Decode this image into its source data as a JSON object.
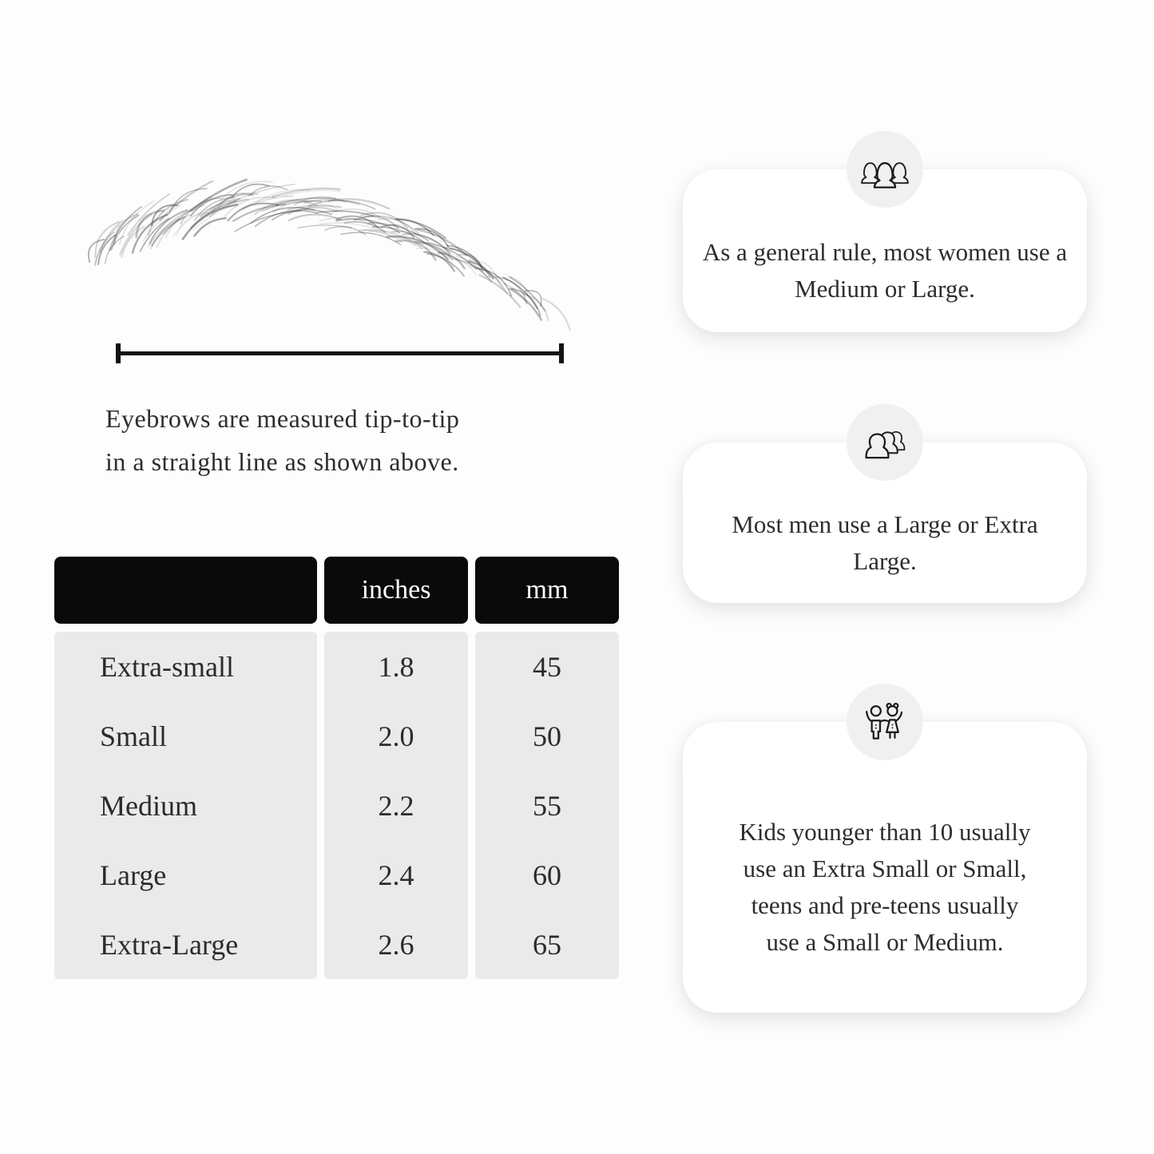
{
  "figure": {
    "illustration": "hand-drawn eyebrow sketch",
    "measurement_line": "tip-to-tip ruler line with end ticks",
    "caption_line1": "Eyebrows are measured tip-to-tip",
    "caption_line2": "in a straight line as shown above."
  },
  "size_table": {
    "headers": [
      "",
      "inches",
      "mm"
    ],
    "rows": [
      {
        "label": "Extra-small",
        "inches": "1.8",
        "mm": "45"
      },
      {
        "label": "Small",
        "inches": "2.0",
        "mm": "50"
      },
      {
        "label": "Medium",
        "inches": "2.2",
        "mm": "55"
      },
      {
        "label": "Large",
        "inches": "2.4",
        "mm": "60"
      },
      {
        "label": "Extra-Large",
        "inches": "2.6",
        "mm": "65"
      }
    ],
    "colors": {
      "header_bg": "#0a0a0a",
      "header_text": "#ffffff",
      "body_bg": "#eaeaea"
    }
  },
  "cards": [
    {
      "icon": "women-group-icon",
      "text": "As a general rule, most women use a Medium or Large."
    },
    {
      "icon": "men-group-icon",
      "text": "Most men use a Large or Extra Large."
    },
    {
      "icon": "children-icon",
      "text": "Kids younger than 10 usually use an Extra Small or Small, teens and pre-teens usually use a Small or Medium."
    }
  ]
}
